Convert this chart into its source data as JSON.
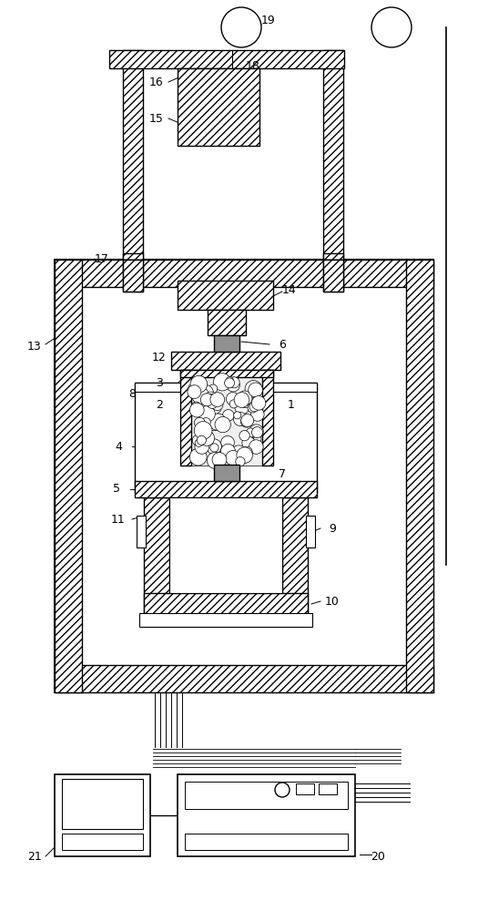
{
  "bg_color": "#ffffff",
  "lc": "#000000",
  "gray": "#808080",
  "figsize": [
    5.36,
    10.0
  ],
  "dpi": 100
}
